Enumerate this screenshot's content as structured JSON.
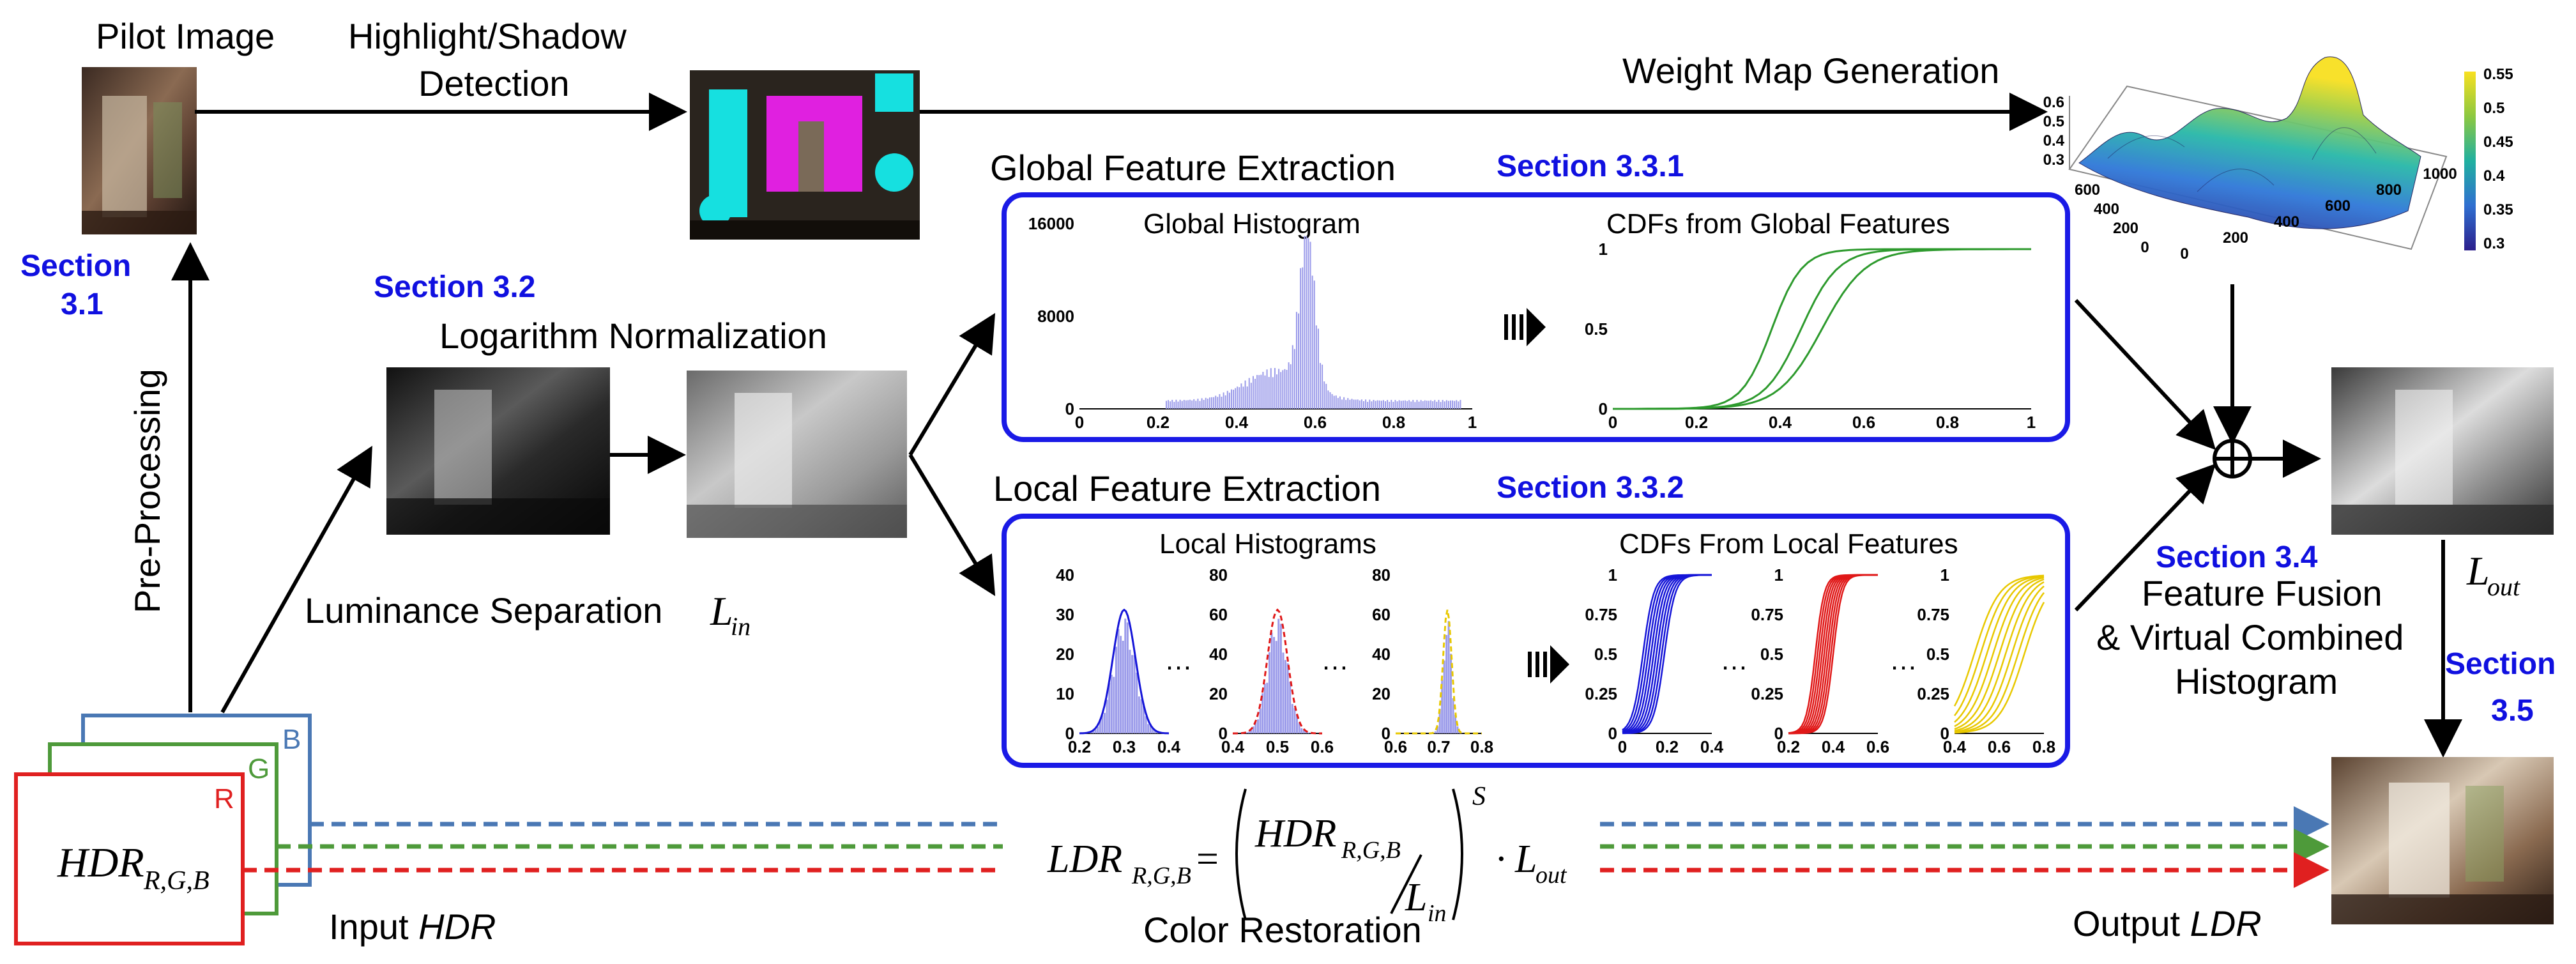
{
  "labels": {
    "pilot_image": "Pilot Image",
    "highlight_line1": "Highlight/Shadow",
    "highlight_line2": "Detection",
    "weight_map": "Weight Map Generation",
    "global_feature": "Global Feature Extraction",
    "local_feature": "Local Feature Extraction",
    "log_norm": "Logarithm Normalization",
    "lum_sep": "Luminance Separation",
    "lum_sym": "L",
    "lum_sub": "in",
    "pre_processing": "Pre-Processing",
    "fusion_line1": "Feature Fusion",
    "fusion_line2": "& Virtual Combined",
    "fusion_line3": "Histogram",
    "lout_sym": "L",
    "lout_sub": "out",
    "input_prefix": "Input ",
    "input_italic": "HDR",
    "output_prefix": "Output ",
    "output_italic": "LDR",
    "color_restoration": "Color Restoration"
  },
  "sections": {
    "s31_line1": "Section",
    "s31_line2": "3.1",
    "s32": "Section 3.2",
    "s331": "Section 3.3.1",
    "s332": "Section 3.3.2",
    "s34": "Section 3.4",
    "s35_line1": "Section",
    "s35_line2": "3.5"
  },
  "channels": {
    "b": "B",
    "g": "G",
    "r": "R"
  },
  "hdr_box": {
    "main": "HDR",
    "sub": "R,G,B"
  },
  "formula": {
    "lhs": "LDR",
    "lhs_sub": "R,G,B",
    "equals": "=",
    "num": "HDR",
    "num_sub": "R,G,B",
    "den": "L",
    "den_sub": "in",
    "exp": "S",
    "dot": "·",
    "out": "L",
    "out_sub": "out"
  },
  "global_panel": {
    "hist_title": "Global Histogram",
    "hist_yticks": [
      "16000",
      "8000",
      "0"
    ],
    "hist_xticks": [
      "0",
      "0.2",
      "0.4",
      "0.6",
      "0.8",
      "1"
    ],
    "cdf_title": "CDFs from Global Features",
    "cdf_yticks": [
      "1",
      "0.5",
      "0"
    ],
    "cdf_xticks": [
      "0",
      "0.2",
      "0.4",
      "0.6",
      "0.8",
      "1"
    ]
  },
  "local_panel": {
    "hist_title": "Local Histograms",
    "cdf_title": "CDFs From Local Features",
    "h1_yticks": [
      "40",
      "30",
      "20",
      "10",
      "0"
    ],
    "h1_xticks": [
      "0.2",
      "0.3",
      "0.4"
    ],
    "h2_yticks": [
      "80",
      "60",
      "40",
      "20",
      "0"
    ],
    "h2_xticks": [
      "0.4",
      "0.5",
      "0.6"
    ],
    "h3_yticks": [
      "80",
      "60",
      "40",
      "20",
      "0"
    ],
    "h3_xticks": [
      "0.6",
      "0.7",
      "0.8"
    ],
    "c1_yticks": [
      "1",
      "0.75",
      "0.5",
      "0.25",
      "0"
    ],
    "c1_xticks": [
      "0",
      "0.2",
      "0.4"
    ],
    "c2_yticks": [
      "1",
      "0.75",
      "0.5",
      "0.25",
      "0"
    ],
    "c2_xticks": [
      "0.2",
      "0.4",
      "0.6"
    ],
    "c3_yticks": [
      "1",
      "0.75",
      "0.5",
      "0.25",
      "0"
    ],
    "c3_xticks": [
      "0.4",
      "0.6",
      "0.8"
    ],
    "ellipsis": "…"
  },
  "weight_map_plot": {
    "colorbar_ticks": [
      "0.55",
      "0.5",
      "0.45",
      "0.4",
      "0.35",
      "0.3"
    ],
    "z_ticks": [
      "0.6",
      "0.5",
      "0.4",
      "0.3"
    ],
    "y_ticks": [
      "600",
      "400",
      "200",
      "0"
    ],
    "x_ticks": [
      "0",
      "200",
      "400",
      "600",
      "800",
      "1000"
    ]
  },
  "colors": {
    "panel_border": "#1a1ae6",
    "section_blue": "#1010e0",
    "hdr_b": "#4a78b4",
    "hdr_g": "#4e9a3a",
    "hdr_r": "#e02020",
    "hist_fill": "#9b9bea",
    "cdf_green": "#2d9a2d",
    "local_blue": "#1515d8",
    "local_red": "#e01818",
    "local_yellow": "#e8c800"
  }
}
